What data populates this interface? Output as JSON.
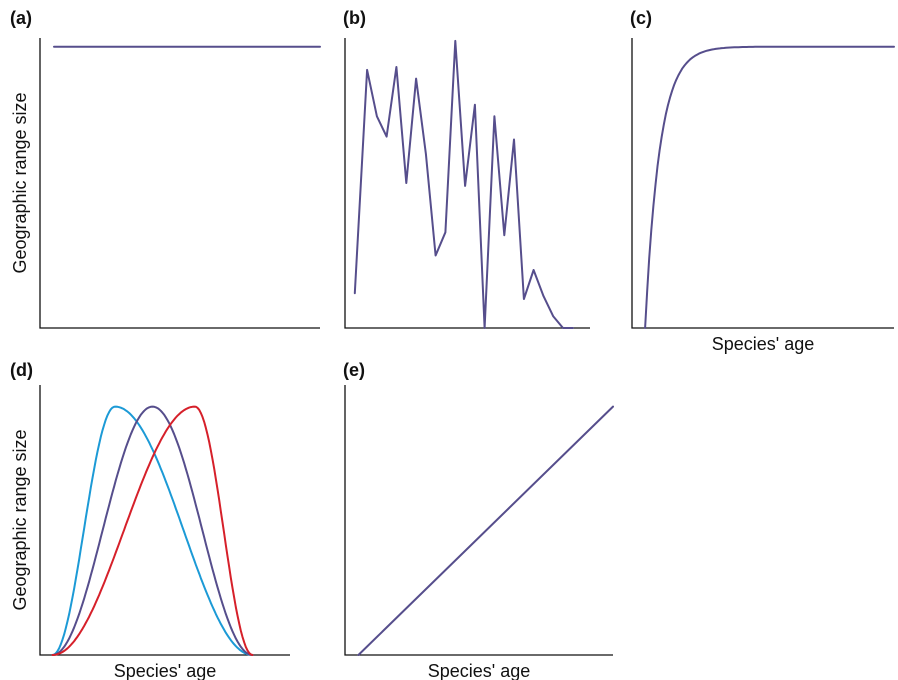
{
  "colors": {
    "axis": "#111111",
    "purple": "#564e8c",
    "blue": "#1c9ad6",
    "red": "#d6202a"
  },
  "chart_data": [
    {
      "id": "a",
      "panel_label": "(a)",
      "type": "line",
      "xlabel": "",
      "ylabel": "Geographic range size",
      "xlim": [
        0,
        1
      ],
      "ylim": [
        0,
        1
      ],
      "grid": false,
      "series": [
        {
          "color": "purple",
          "x": [
            0.05,
            1.0
          ],
          "y": [
            0.97,
            0.97
          ]
        }
      ]
    },
    {
      "id": "b",
      "panel_label": "(b)",
      "type": "line",
      "xlabel": "",
      "ylabel": "",
      "xlim": [
        0,
        1
      ],
      "ylim": [
        0,
        1
      ],
      "grid": false,
      "series": [
        {
          "color": "purple",
          "x": [
            0.04,
            0.09,
            0.13,
            0.17,
            0.21,
            0.25,
            0.29,
            0.33,
            0.37,
            0.41,
            0.45,
            0.49,
            0.53,
            0.57,
            0.61,
            0.65,
            0.69,
            0.73,
            0.77,
            0.81,
            0.85,
            0.89,
            0.93
          ],
          "y": [
            0.12,
            0.89,
            0.73,
            0.66,
            0.9,
            0.5,
            0.86,
            0.6,
            0.25,
            0.33,
            0.99,
            0.49,
            0.77,
            0.0,
            0.73,
            0.32,
            0.65,
            0.1,
            0.2,
            0.11,
            0.04,
            0.0,
            0.0
          ]
        }
      ]
    },
    {
      "id": "c",
      "panel_label": "(c)",
      "type": "line",
      "xlabel": "Species' age",
      "ylabel": "",
      "xlim": [
        0,
        1
      ],
      "ylim": [
        0,
        1
      ],
      "grid": false,
      "series": [
        {
          "color": "purple",
          "shape": "saturating",
          "x_start": 0.05,
          "x_end": 1.0,
          "y_start": 0.0,
          "y_end": 0.97
        }
      ]
    },
    {
      "id": "d",
      "panel_label": "(d)",
      "type": "line",
      "xlabel": "Species' age",
      "ylabel": "Geographic range size",
      "xlim": [
        0,
        1
      ],
      "ylim": [
        0,
        1
      ],
      "grid": false,
      "series": [
        {
          "color": "blue",
          "shape": "hump",
          "x_start": 0.05,
          "x_end": 0.85,
          "peak_x": 0.3,
          "peak_y": 0.92
        },
        {
          "color": "purple",
          "shape": "hump",
          "x_start": 0.05,
          "x_end": 0.85,
          "peak_x": 0.45,
          "peak_y": 0.92
        },
        {
          "color": "red",
          "shape": "hump",
          "x_start": 0.05,
          "x_end": 0.85,
          "peak_x": 0.62,
          "peak_y": 0.92
        }
      ]
    },
    {
      "id": "e",
      "panel_label": "(e)",
      "type": "line",
      "xlabel": "Species' age",
      "ylabel": "",
      "xlim": [
        0,
        1
      ],
      "ylim": [
        0,
        1
      ],
      "grid": false,
      "series": [
        {
          "color": "purple",
          "x": [
            0.05,
            1.0
          ],
          "y": [
            0.0,
            0.92
          ]
        }
      ]
    }
  ]
}
